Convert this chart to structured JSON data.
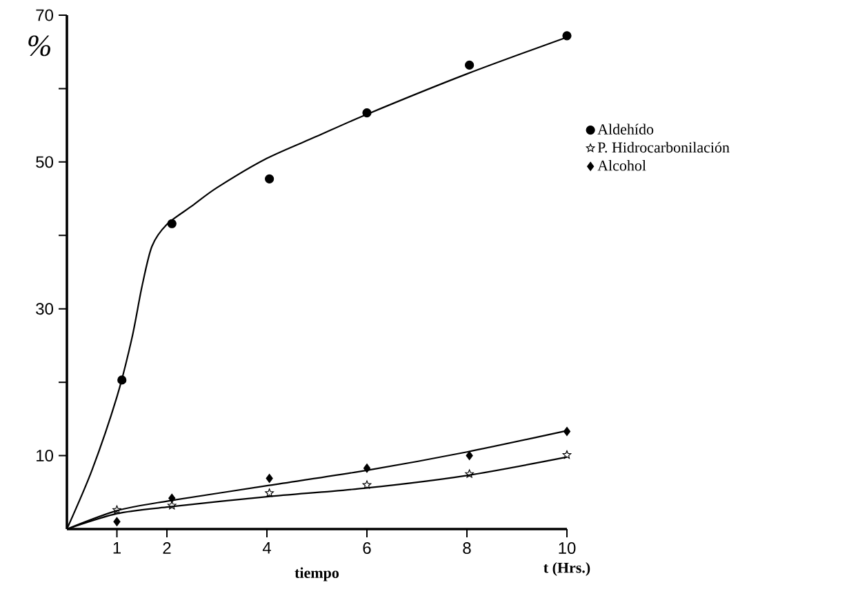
{
  "chart_data": {
    "type": "scatter",
    "ylabel": "%",
    "xlabel": "t  (Hrs.)",
    "annotations": [
      "tiempo"
    ],
    "xlim": [
      0,
      10
    ],
    "ylim": [
      0,
      70
    ],
    "xticks": [
      1,
      2,
      4,
      6,
      8,
      10
    ],
    "yticks": [
      10,
      {
        "value": 20,
        "label": null
      },
      30,
      {
        "value": 40,
        "label": null
      },
      50,
      {
        "value": 60,
        "label": null
      },
      70
    ],
    "grid": false,
    "legend": "right",
    "series": [
      {
        "name": "Aldehído",
        "marker": "circle",
        "color": "#000000",
        "x": [
          1.1,
          2.1,
          4.05,
          6,
          8.05,
          10
        ],
        "values": [
          20.3,
          41.6,
          47.7,
          56.7,
          63.2,
          67.2
        ]
      },
      {
        "name": "P.  Hidrocarbonilación",
        "marker": "star",
        "color": "#000000",
        "x": [
          1,
          2.1,
          4.05,
          6,
          8.05,
          10
        ],
        "values": [
          2.6,
          3.2,
          4.9,
          6.0,
          7.5,
          10.1
        ]
      },
      {
        "name": "Alcohol",
        "marker": "diamond",
        "color": "#000000",
        "x": [
          1,
          2.1,
          4.05,
          6,
          8.05,
          10
        ],
        "values": [
          1.0,
          4.2,
          6.9,
          8.3,
          10.0,
          13.3
        ]
      },
      {
        "type": "line",
        "color": "#000000",
        "x": [
          0,
          0.5,
          1,
          1.3,
          1.5,
          1.7,
          2,
          2.5,
          3,
          4,
          5,
          6,
          8,
          10
        ],
        "values": [
          0,
          8,
          18,
          26,
          33,
          38.5,
          41.5,
          44,
          46.5,
          50.5,
          53.5,
          56.5,
          62,
          67
        ]
      },
      {
        "type": "line",
        "color": "#000000",
        "x": [
          0,
          1,
          2,
          4,
          6,
          8,
          10
        ],
        "values": [
          0,
          2.1,
          3.0,
          4.4,
          5.6,
          7.3,
          9.8
        ]
      },
      {
        "type": "line",
        "color": "#000000",
        "x": [
          0,
          1,
          2,
          4,
          6,
          8,
          10
        ],
        "values": [
          0,
          2.5,
          3.8,
          5.9,
          8.0,
          10.5,
          13.4
        ]
      }
    ]
  }
}
